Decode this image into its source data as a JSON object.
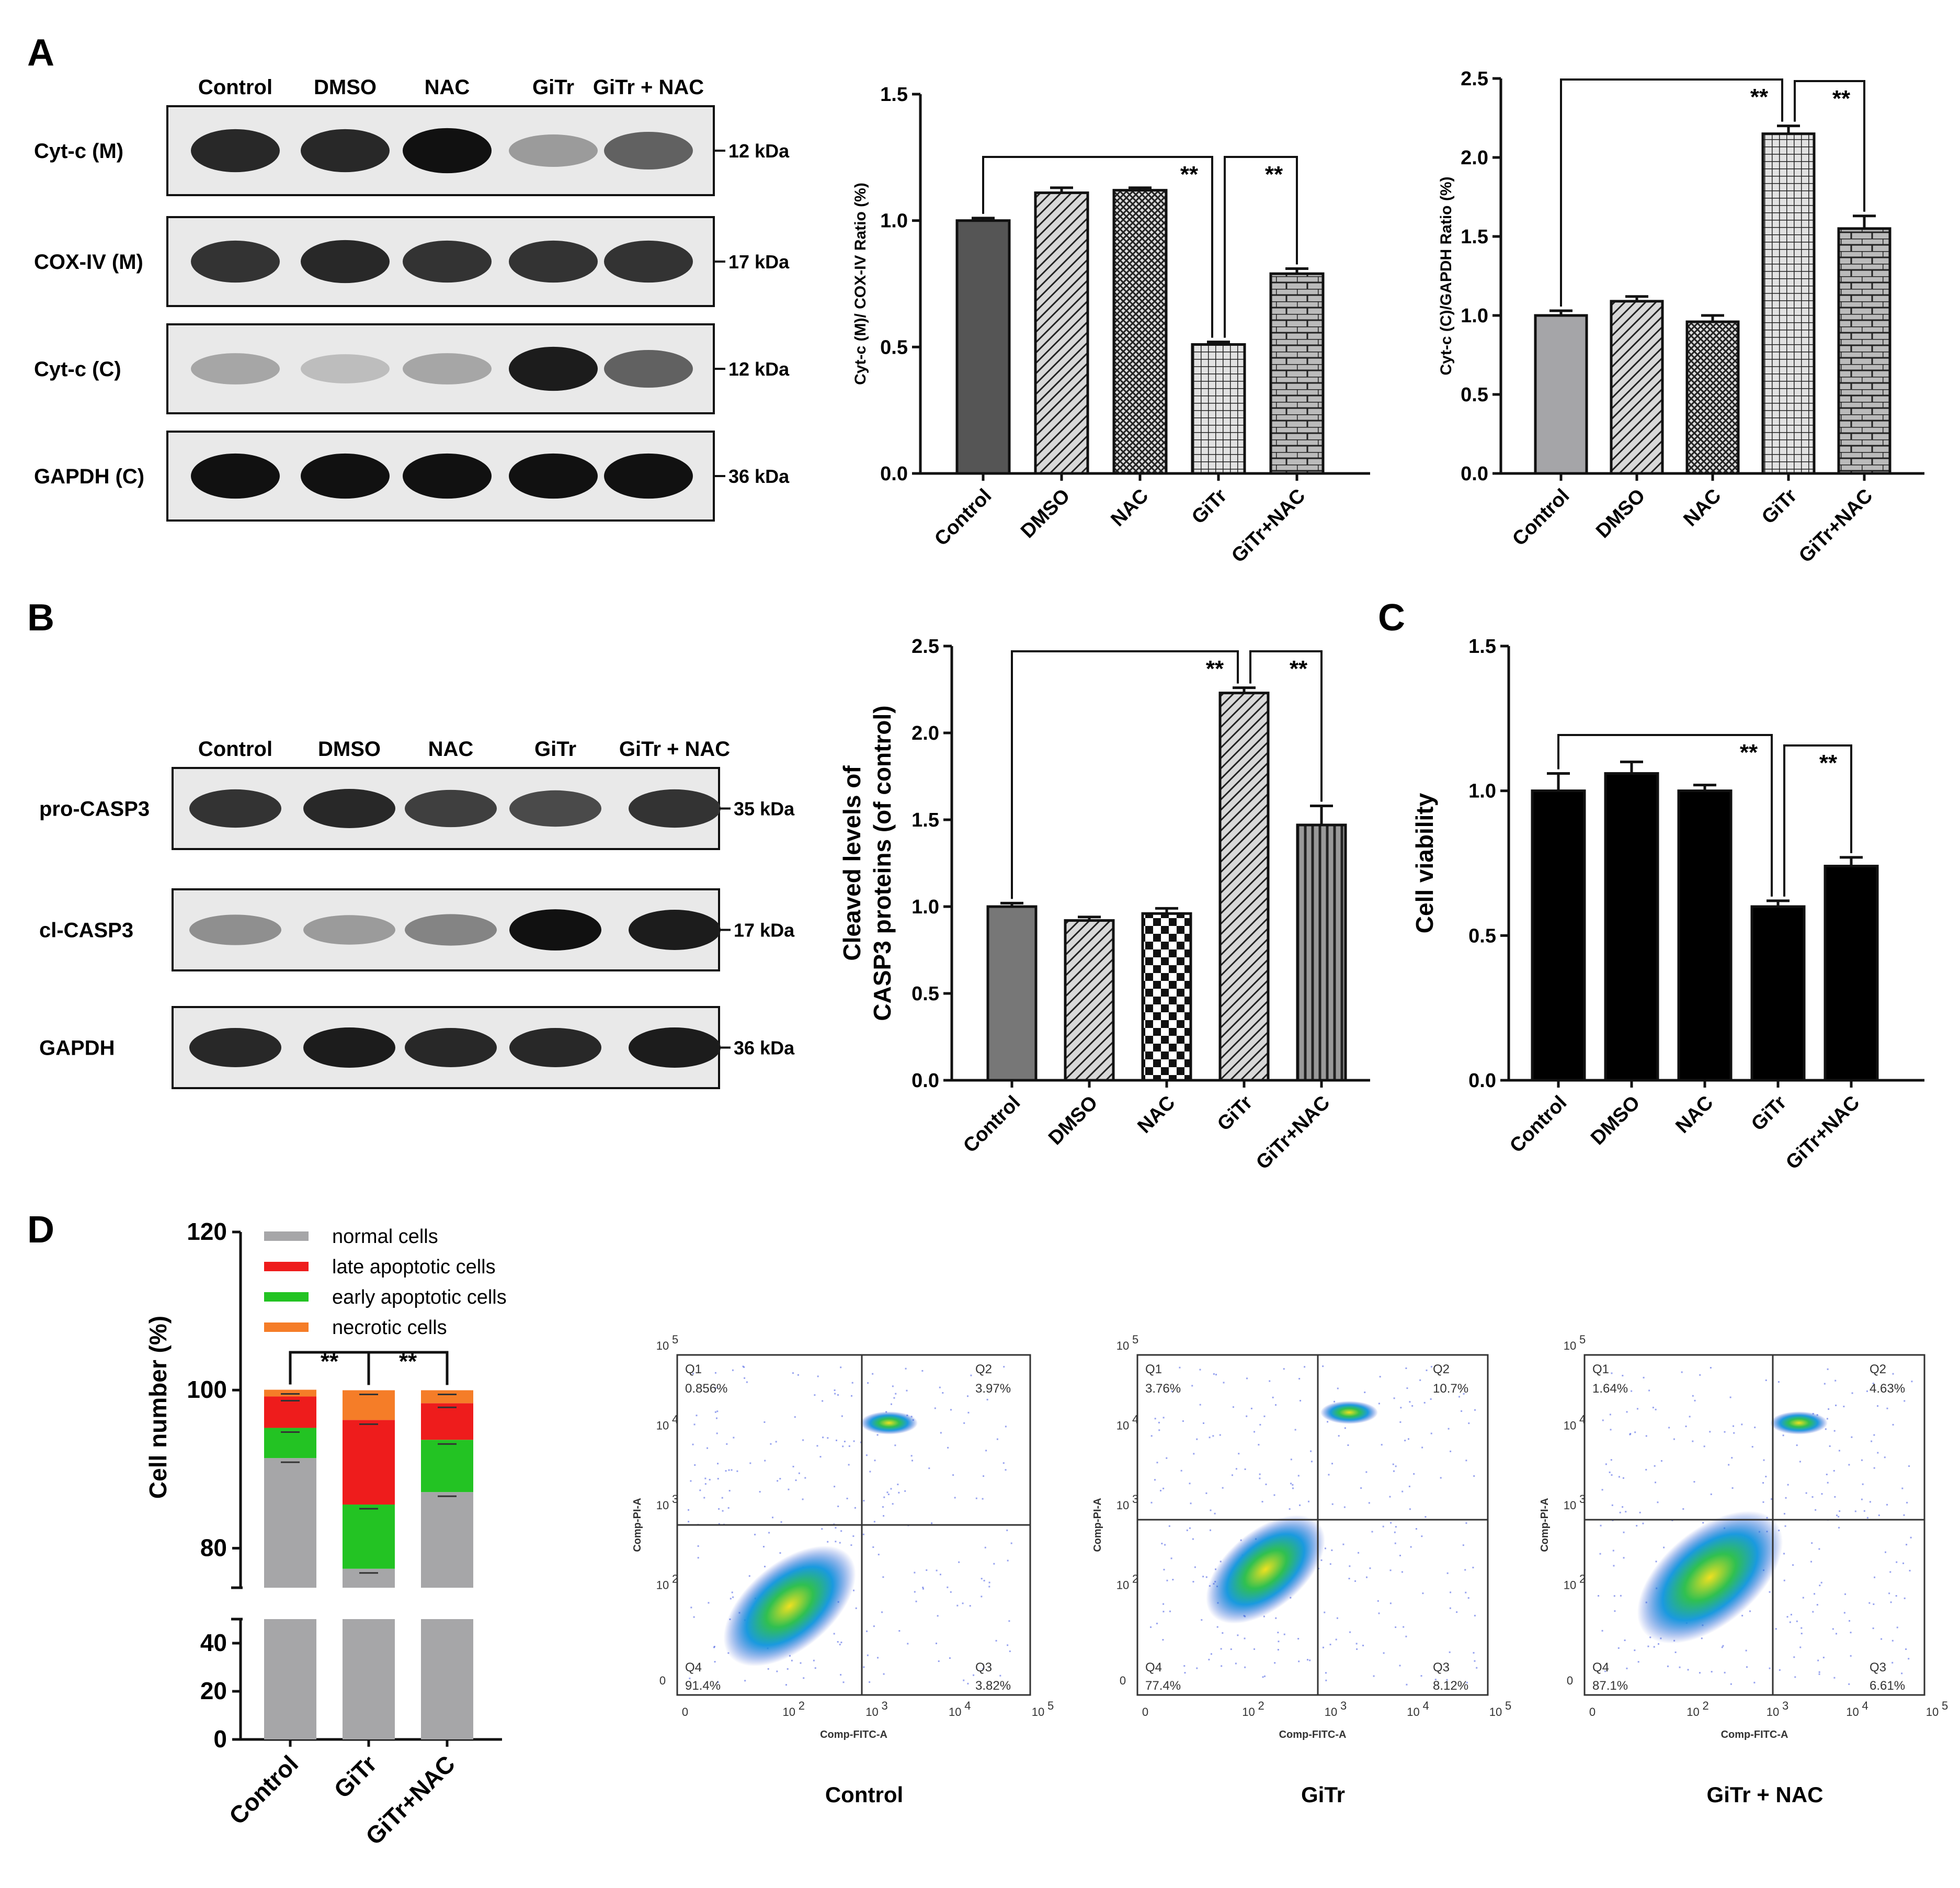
{
  "panels": {
    "A": "A",
    "B": "B",
    "C": "C",
    "D": "D"
  },
  "blotA": {
    "lanes": [
      "Control",
      "DMSO",
      "NAC",
      "GiTr",
      "GiTr + NAC"
    ],
    "rows": [
      {
        "label": "Cyt-c (M)",
        "kda": "12 kDa",
        "intensity": [
          0.85,
          0.85,
          0.95,
          0.35,
          0.6
        ]
      },
      {
        "label": "COX-IV (M)",
        "kda": "17 kDa",
        "intensity": [
          0.8,
          0.85,
          0.8,
          0.8,
          0.8
        ]
      },
      {
        "label": "Cyt-c (C)",
        "kda": "12 kDa",
        "intensity": [
          0.3,
          0.2,
          0.3,
          0.9,
          0.6
        ]
      },
      {
        "label": "GAPDH (C)",
        "kda": "36 kDa",
        "intensity": [
          0.95,
          0.95,
          0.95,
          0.95,
          0.95
        ]
      }
    ]
  },
  "blotB": {
    "lanes": [
      "Control",
      "DMSO",
      "NAC",
      "GiTr",
      "GiTr + NAC"
    ],
    "rows": [
      {
        "label": "pro-CASP3",
        "kda": "35 kDa",
        "intensity": [
          0.8,
          0.85,
          0.75,
          0.7,
          0.8
        ]
      },
      {
        "label": "cl-CASP3",
        "kda": "17 kDa",
        "intensity": [
          0.4,
          0.35,
          0.45,
          0.95,
          0.9
        ]
      },
      {
        "label": "GAPDH",
        "kda": "36 kDa",
        "intensity": [
          0.85,
          0.9,
          0.85,
          0.85,
          0.9
        ]
      }
    ]
  },
  "chart_data": [
    {
      "id": "A1",
      "type": "bar",
      "categories": [
        "Control",
        "DMSO",
        "NAC",
        "GiTr",
        "GiTr+NAC"
      ],
      "values": [
        1.0,
        1.11,
        1.12,
        0.51,
        0.79
      ],
      "errors": [
        0.01,
        0.02,
        0.01,
        0.01,
        0.02
      ],
      "ylabel": "Cyt-c (M)/ COX-IV Ratio (%)",
      "ylim": [
        0,
        1.5
      ],
      "yticks": [
        "0.0",
        "0.5",
        "1.0",
        "1.5"
      ],
      "significance": [
        {
          "from": 0,
          "to": 3,
          "label": "**"
        },
        {
          "from": 3,
          "to": 4,
          "label": "**"
        }
      ]
    },
    {
      "id": "A2",
      "type": "bar",
      "categories": [
        "Control",
        "DMSO",
        "NAC",
        "GiTr",
        "GiTr+NAC"
      ],
      "values": [
        1.0,
        1.09,
        0.96,
        2.15,
        1.55
      ],
      "errors": [
        0.03,
        0.03,
        0.04,
        0.05,
        0.08
      ],
      "ylabel": "Cyt-c (C)/GAPDH Ratio (%)",
      "ylim": [
        0,
        2.5
      ],
      "yticks": [
        "0.0",
        "0.5",
        "1.0",
        "1.5",
        "2.0",
        "2.5"
      ],
      "significance": [
        {
          "from": 0,
          "to": 3,
          "label": "**"
        },
        {
          "from": 3,
          "to": 4,
          "label": "**"
        }
      ]
    },
    {
      "id": "B1",
      "type": "bar",
      "categories": [
        "Control",
        "DMSO",
        "NAC",
        "GiTr",
        "GiTr+NAC"
      ],
      "values": [
        1.0,
        0.92,
        0.96,
        2.23,
        1.47
      ],
      "errors": [
        0.02,
        0.02,
        0.03,
        0.03,
        0.11
      ],
      "ylabel": "Cleaved levels of CASP3 proteins (of control)",
      "ylim": [
        0,
        2.5
      ],
      "yticks": [
        "0.0",
        "0.5",
        "1.0",
        "1.5",
        "2.0",
        "2.5"
      ],
      "significance": [
        {
          "from": 0,
          "to": 3,
          "label": "**"
        },
        {
          "from": 3,
          "to": 4,
          "label": "**"
        }
      ]
    },
    {
      "id": "C",
      "type": "bar",
      "categories": [
        "Control",
        "DMSO",
        "NAC",
        "GiTr",
        "GiTr+NAC"
      ],
      "values": [
        1.0,
        1.06,
        1.0,
        0.6,
        0.74
      ],
      "errors": [
        0.06,
        0.04,
        0.02,
        0.02,
        0.03
      ],
      "ylabel": "Cell viability",
      "ylim": [
        0,
        1.5
      ],
      "yticks": [
        "0.0",
        "0.5",
        "1.0",
        "1.5"
      ],
      "significance": [
        {
          "from": 0,
          "to": 3,
          "label": "**"
        },
        {
          "from": 3,
          "to": 4,
          "label": "**"
        }
      ]
    },
    {
      "id": "D",
      "type": "bar",
      "stacked": true,
      "categories": [
        "Control",
        "GiTr",
        "GiTr+NAC"
      ],
      "ylabel": "Cell number (%)",
      "yticks_top": [
        "80",
        "100",
        "120"
      ],
      "yticks_bottom": [
        "0",
        "20",
        "40"
      ],
      "series": [
        {
          "name": "normal cells",
          "color": "#a6a6a8",
          "values": [
            91.4,
            77.4,
            87.1
          ]
        },
        {
          "name": "early apoptotic cells",
          "color": "#23c323",
          "values": [
            3.82,
            8.12,
            6.61
          ]
        },
        {
          "name": "late apoptotic cells",
          "color": "#ee1c1c",
          "values": [
            3.97,
            10.7,
            4.63
          ]
        },
        {
          "name": "necrotic cells",
          "color": "#f57d28",
          "values": [
            0.856,
            3.76,
            1.64
          ]
        }
      ],
      "legend_order": [
        "normal cells",
        "late apoptotic cells",
        "early apoptotic cells",
        "necrotic cells"
      ],
      "significance": [
        {
          "from": 0,
          "to": 1,
          "label": "**"
        },
        {
          "from": 1,
          "to": 2,
          "label": "**"
        }
      ]
    }
  ],
  "flow": {
    "xlabel": "Comp-FITC-A",
    "ylabel": "Comp-PI-A",
    "xticks": [
      "0",
      "10",
      "10",
      "10",
      "10"
    ],
    "xexp": [
      "",
      "2",
      "3",
      "4",
      "5"
    ],
    "yticks": [
      "0",
      "10",
      "10",
      "10",
      "10"
    ],
    "yexp": [
      "",
      "2",
      "3",
      "4",
      "5"
    ],
    "plots": [
      {
        "title": "Control",
        "q1": "Q1",
        "q2": "Q2",
        "q3": "Q3",
        "q4": "Q4",
        "q1v": "0.856%",
        "q2v": "3.97%",
        "q3v": "3.82%",
        "q4v": "91.4%"
      },
      {
        "title": "GiTr",
        "q1": "Q1",
        "q2": "Q2",
        "q3": "Q3",
        "q4": "Q4",
        "q1v": "3.76%",
        "q2v": "10.7%",
        "q3v": "8.12%",
        "q4v": "77.4%"
      },
      {
        "title": "GiTr + NAC",
        "q1": "Q1",
        "q2": "Q2",
        "q3": "Q3",
        "q4": "Q4",
        "q1v": "1.64%",
        "q2v": "4.63%",
        "q3v": "6.61%",
        "q4v": "87.1%"
      }
    ]
  }
}
